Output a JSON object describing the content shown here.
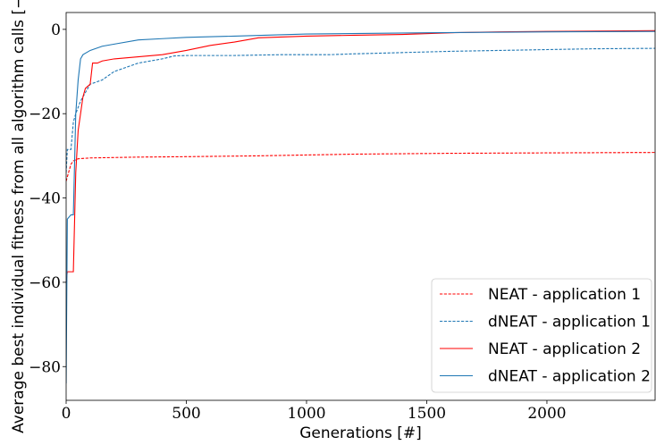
{
  "chart_data": {
    "type": "line",
    "xlabel": "Generations [#]",
    "ylabel": "Average best individual fitness from all algorithm calls [−]",
    "xlim": [
      0,
      2450
    ],
    "ylim": [
      -88,
      4
    ],
    "x_ticks": [
      0,
      500,
      1000,
      1500,
      2000
    ],
    "y_ticks": [
      0,
      -20,
      -40,
      -60,
      -80
    ],
    "x_tick_labels": [
      "0",
      "500",
      "1000",
      "1500",
      "2000"
    ],
    "y_tick_labels": [
      "0",
      "−20",
      "−40",
      "−60",
      "−80"
    ],
    "grid": false,
    "legend_position": "lower-right",
    "series": [
      {
        "name": "NEAT - application 1",
        "color": "#ff0000",
        "style": "dashed",
        "points": [
          [
            0,
            -36
          ],
          [
            10,
            -34
          ],
          [
            20,
            -32
          ],
          [
            30,
            -31.2
          ],
          [
            50,
            -30.7
          ],
          [
            100,
            -30.5
          ],
          [
            300,
            -30.3
          ],
          [
            500,
            -30.2
          ],
          [
            800,
            -30.0
          ],
          [
            1000,
            -29.8
          ],
          [
            1200,
            -29.6
          ],
          [
            1400,
            -29.5
          ],
          [
            1600,
            -29.4
          ],
          [
            2000,
            -29.3
          ],
          [
            2450,
            -29.2
          ]
        ]
      },
      {
        "name": "dNEAT - application 1",
        "color": "#1f77b4",
        "style": "dashed",
        "points": [
          [
            0,
            -34
          ],
          [
            5,
            -28.5
          ],
          [
            20,
            -28.5
          ],
          [
            30,
            -22
          ],
          [
            40,
            -20
          ],
          [
            60,
            -17
          ],
          [
            80,
            -15
          ],
          [
            100,
            -13
          ],
          [
            150,
            -12
          ],
          [
            200,
            -10
          ],
          [
            250,
            -9
          ],
          [
            300,
            -8
          ],
          [
            400,
            -7
          ],
          [
            450,
            -6.3
          ],
          [
            500,
            -6.2
          ],
          [
            700,
            -6.2
          ],
          [
            900,
            -6
          ],
          [
            1100,
            -6
          ],
          [
            1200,
            -5.8
          ],
          [
            1400,
            -5.5
          ],
          [
            1600,
            -5.2
          ],
          [
            1800,
            -5
          ],
          [
            2000,
            -4.8
          ],
          [
            2200,
            -4.6
          ],
          [
            2450,
            -4.5
          ]
        ]
      },
      {
        "name": "NEAT - application 2",
        "color": "#ff0000",
        "style": "solid",
        "points": [
          [
            0,
            -60
          ],
          [
            5,
            -57.5
          ],
          [
            30,
            -57.5
          ],
          [
            40,
            -34
          ],
          [
            50,
            -24
          ],
          [
            60,
            -20
          ],
          [
            70,
            -16
          ],
          [
            80,
            -14
          ],
          [
            100,
            -13
          ],
          [
            110,
            -8
          ],
          [
            130,
            -8
          ],
          [
            150,
            -7.5
          ],
          [
            200,
            -7
          ],
          [
            300,
            -6.5
          ],
          [
            400,
            -6
          ],
          [
            500,
            -5
          ],
          [
            600,
            -3.8
          ],
          [
            700,
            -3
          ],
          [
            800,
            -2
          ],
          [
            1000,
            -1.6
          ],
          [
            1200,
            -1.4
          ],
          [
            1400,
            -1.2
          ],
          [
            1600,
            -0.8
          ],
          [
            1800,
            -0.6
          ],
          [
            2000,
            -0.5
          ],
          [
            2200,
            -0.4
          ],
          [
            2450,
            -0.3
          ]
        ]
      },
      {
        "name": "dNEAT - application 2",
        "color": "#1f77b4",
        "style": "solid",
        "points": [
          [
            0,
            -84
          ],
          [
            5,
            -45
          ],
          [
            20,
            -44
          ],
          [
            30,
            -44
          ],
          [
            40,
            -20
          ],
          [
            50,
            -12
          ],
          [
            60,
            -7
          ],
          [
            70,
            -6
          ],
          [
            100,
            -5
          ],
          [
            150,
            -4
          ],
          [
            200,
            -3.5
          ],
          [
            300,
            -2.5
          ],
          [
            400,
            -2.2
          ],
          [
            500,
            -1.9
          ],
          [
            700,
            -1.6
          ],
          [
            1000,
            -1.1
          ],
          [
            1500,
            -0.8
          ],
          [
            2000,
            -0.6
          ],
          [
            2450,
            -0.5
          ]
        ]
      }
    ]
  }
}
